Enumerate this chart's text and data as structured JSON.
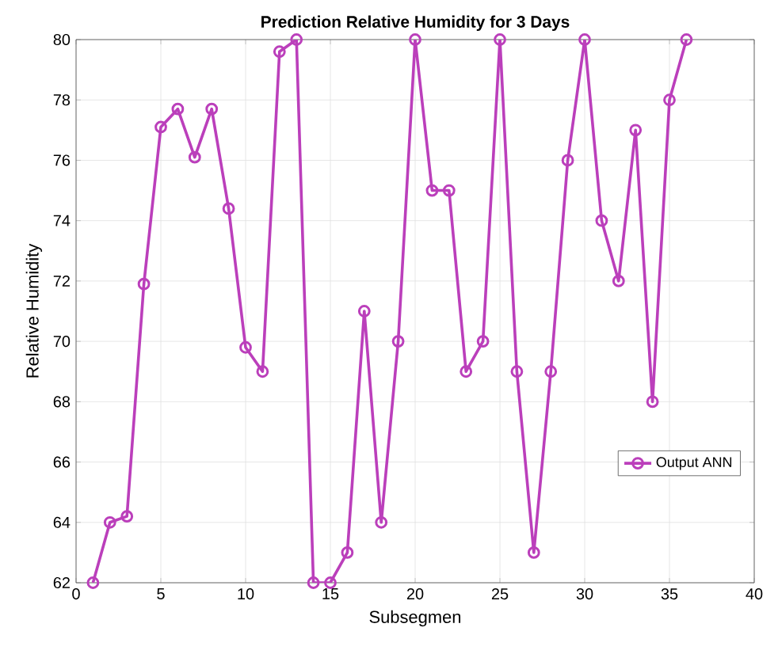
{
  "chart_data": {
    "type": "line",
    "title": "Prediction Relative Humidity for 3 Days",
    "xlabel": "Subsegmen",
    "ylabel": "Relative Humidity",
    "series": [
      {
        "name": "Output ANN",
        "color": "#bb3fbb",
        "x": [
          1,
          2,
          3,
          4,
          5,
          6,
          7,
          8,
          9,
          10,
          11,
          12,
          13,
          14,
          15,
          16,
          17,
          18,
          19,
          20,
          21,
          22,
          23,
          24,
          25,
          26,
          27,
          28,
          29,
          30,
          31,
          32,
          33,
          34,
          35,
          36
        ],
        "values": [
          62,
          64,
          64.2,
          71.9,
          77.1,
          77.7,
          76.1,
          77.7,
          74.4,
          69.8,
          69,
          79.6,
          80,
          62,
          62,
          63,
          71,
          64,
          70,
          80,
          75,
          75,
          69,
          70,
          80,
          69,
          63,
          69,
          76,
          80,
          74,
          72,
          77,
          68,
          78,
          80
        ]
      }
    ],
    "xlim": [
      0,
      40
    ],
    "ylim": [
      62,
      80
    ],
    "xticks": [
      0,
      5,
      10,
      15,
      20,
      25,
      30,
      35,
      40
    ],
    "yticks": [
      62,
      64,
      66,
      68,
      70,
      72,
      74,
      76,
      78,
      80
    ],
    "grid": true,
    "legend": "right",
    "marker": "circle",
    "line_style": "solid"
  }
}
